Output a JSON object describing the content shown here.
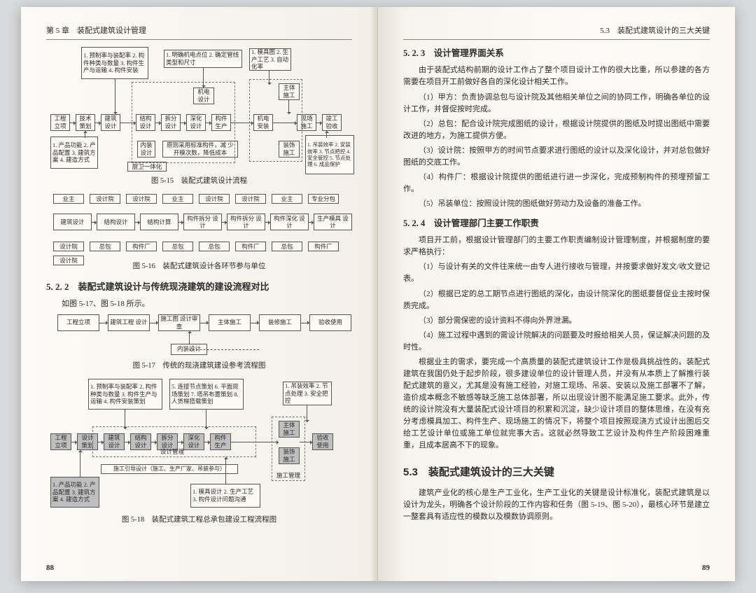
{
  "left": {
    "running_head": "第 5 章　装配式建筑设计管理",
    "page_num": "88",
    "fig15": {
      "caption": "图 5-15　装配式建筑设计流程",
      "L1": {
        "t": "1. 预制率与装配率\n2. 构件种类与数量\n3. 构件生产与运输\n4. 构件安装"
      },
      "L2": {
        "t": "1. 明确机电点位\n2. 确定管线类型和尺寸"
      },
      "L3": {
        "t": "1. 模具图\n2. 生产工艺\n3. 自动化率"
      },
      "R1": {
        "t": "工程\n立项"
      },
      "R2": {
        "t": "技术\n策划"
      },
      "R3": {
        "t": "建筑\n设计"
      },
      "R4": {
        "t": "结构\n设计"
      },
      "R5": {
        "t": "拆分\n设计"
      },
      "R6": {
        "t": "深化\n设计"
      },
      "R7": {
        "t": "构件\n生产"
      },
      "R8": {
        "t": "机电\n安装"
      },
      "R9": {
        "t": "现场\n施工"
      },
      "R10": {
        "t": "竣工\n验收"
      },
      "M1": {
        "t": "机电\n设计"
      },
      "M2": {
        "t": "主体\n施工"
      },
      "B1": {
        "t": "内装\n设计"
      },
      "B2": {
        "t": "原则采用标准构件，减\n少开模次数，降低成本"
      },
      "B3": {
        "t": "装饰\n施工"
      },
      "BL": {
        "t": "1. 产品功能\n2. 产品配置\n3. 建筑方案\n4. 建造方式"
      },
      "BR": {
        "t": "1. 吊装效率\n2. 安装效率\n3. 节点把控\n4. 安全管控\n5. 节点处理\n6. 成品保护"
      },
      "K": {
        "t": "厨卫一体化"
      }
    },
    "fig16": {
      "caption": "图 5-16　装配式建筑设计各环节参与单位",
      "T": [
        "业主",
        "设计院",
        "设计院",
        "业主",
        "设计院",
        "设计院",
        "业主",
        "专业分包"
      ],
      "M": [
        "建筑设计",
        "结构设计",
        "结构计算",
        "构件拆分\n设计",
        "构件拆分\n设计",
        "构件深化\n设计",
        "生产模具\n设计"
      ],
      "B": [
        "设计院",
        "总包",
        "构件厂",
        "总包",
        "总包",
        "构件厂",
        "总包",
        "构件厂"
      ]
    },
    "sec522_title": "5. 2. 2　装配式建筑设计与传统现浇建筑的建设流程对比",
    "sec522_note": "如图 5-17、图 5-18 所示。",
    "fig17": {
      "caption": "图 5-17　传统的现浇建筑建设参考流程图",
      "row": [
        "工程立项",
        "建筑工程\n设计",
        "施工图\n设计审查",
        "主体施工",
        "装修施工",
        "验收使用"
      ],
      "extra": "内装设计"
    },
    "fig18": {
      "caption": "图 5-18　装配式建筑工程总承包建设工程流程图",
      "T1": {
        "t": "1. 预制率与装配率\n2. 构件种类与数量\n3. 构件生产与运输\n4. 构件安装策划"
      },
      "T2": {
        "t": "5. 连接节点策划\n6. 平面现场策划\n7. 塔吊布置策划\n8. 人货梯搭载策划"
      },
      "T3": {
        "t": "1. 吊装效率\n2. 节点处理\n3. 安全把控"
      },
      "R": [
        "工程\n立项",
        "设计\n策划",
        "建筑\n设计",
        "结构\n设计",
        "拆分\n设计",
        "深化\n设计",
        "构件\n生产",
        "主体\n施工",
        "装饰\n施工",
        "验收\n使用"
      ],
      "mgmt": "设计管理",
      "guide": "施工引导设计（施工、生产厂家、吊装参与）",
      "sg": "施工管理",
      "BL": {
        "t": "1. 产品功能\n2. 产品配置\n3. 建筑方案\n4. 建造方式"
      },
      "BR": {
        "t": "1. 模具设计\n2. 生产工艺\n3. 构件设计问题沟通"
      }
    }
  },
  "right": {
    "running_head": "5.3　装配式建筑设计的三大关键",
    "page_num": "89",
    "h523": "5. 2. 3　设计管理界面关系",
    "p523_intro": "由于装配式结构前期的设计工作占了整个项目设计工作的很大比重，所以参建的各方需要在项目开工前做好各自的深化设计相关工作。",
    "p523_1": "（1）甲方：负责协调总包与设计院及其他相关单位之间的协同工作，明确各单位的设计工作，并督促按时完成。",
    "p523_2": "（2）总包：配合设计院完成图纸的设计，根据设计院提供的图纸及时提出图纸中需要改进的地方，为施工提供方便。",
    "p523_3": "（3）设计院：按照甲方的时间节点要求进行图纸的设计以及深化设计，并对总包做好图纸的交底工作。",
    "p523_4": "（4）构件厂：根据设计院提供的图纸进行进一步深化，完成预制构件的预埋预留工作。",
    "p523_5": "（5）吊装单位：按照设计院的图纸做好劳动力及设备的准备工作。",
    "h524": "5. 2. 4　设计管理部门主要工作职责",
    "p524_intro": "项目开工前，根据设计管理部门的主要工作职责编制设计管理制度，并根据制度的要求严格执行：",
    "p524_1": "（1）与设计有关的文件往来统一由专人进行接收与管理，并按要求做好发文/收文登记表。",
    "p524_2": "（2）根据已定的总工期节点进行图纸的深化，由设计院深化的图纸要督促业主按时保质完成。",
    "p524_3": "（3）部分需保密的设计资料不得向外界泄漏。",
    "p524_4": "（4）施工过程中遇到的需设计院解决的问题要及时报给相关人员，保证解决问题的及时性。",
    "p524_long": "根据业主的需求，要完成一个高质量的装配式建筑设计工作是极具挑战性的。装配式建筑在我国仍处于起步阶段，很多建设单位的设计管理人员，并没有从本质上了解推行装配式建筑的意义，尤其是没有施工经验，对施工现场、吊装、安装以及施工部署不了解，造价成本概念不敏感等缺乏施工总体部署，所以出现设计图不能满足施工要求。此外，传统的设计院没有大量装配式设计项目的积累和沉淀，缺少设计项目的整体思维，在没有充分考虑模具加工、构件生产、现场施工的情况下，将整个项目按照现浇方式设计出图后交给工艺设计单位或施工单位就完事大吉。这就必然导致工艺设计及构件生产阶段困难重重，且成本居高不下的现象。",
    "h53": "5.3　装配式建筑设计的三大关键",
    "p53": "建筑产业化的核心是生产工业化，生产工业化的关键是设计标准化，装配式建筑是以设计为龙头，明确各个设计阶段的工作内容和任务（图 5-19、图 5-20），最核心环节是建立一整套具有适应性的模数以及模数协调原则。"
  },
  "colors": {
    "page_bg": "#fdfbf7",
    "gutter": "#d9d2c4",
    "text": "#2b2b2b",
    "box_border": "#555555",
    "gray_fill": "#bfbfbf"
  }
}
